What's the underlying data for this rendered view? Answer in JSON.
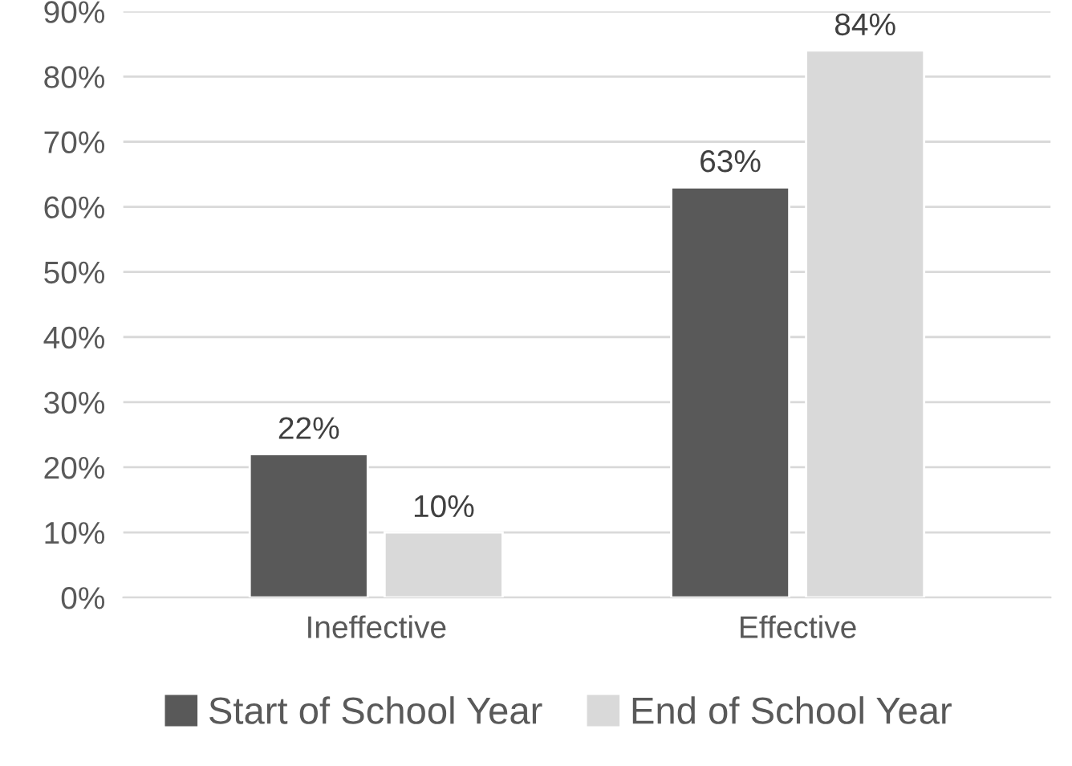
{
  "chart_data": {
    "type": "bar",
    "categories": [
      "Ineffective",
      "Effective"
    ],
    "series": [
      {
        "name": "Start of School Year",
        "color": "#595959",
        "values": [
          22,
          63
        ],
        "value_labels": [
          "22%",
          "63%"
        ]
      },
      {
        "name": "End of School Year",
        "color": "#d9d9d9",
        "values": [
          10,
          84
        ],
        "value_labels": [
          "10%",
          "84%"
        ]
      }
    ],
    "ylim": [
      0,
      90
    ],
    "yticks": [
      {
        "value": 0,
        "label": "0%"
      },
      {
        "value": 10,
        "label": "10%"
      },
      {
        "value": 20,
        "label": "20%"
      },
      {
        "value": 30,
        "label": "30%"
      },
      {
        "value": 40,
        "label": "40%"
      },
      {
        "value": 50,
        "label": "50%"
      },
      {
        "value": 60,
        "label": "60%"
      },
      {
        "value": 70,
        "label": "70%"
      },
      {
        "value": 80,
        "label": "80%"
      },
      {
        "value": 90,
        "label": "90%"
      }
    ],
    "grid": "y",
    "legend": "bottom"
  }
}
